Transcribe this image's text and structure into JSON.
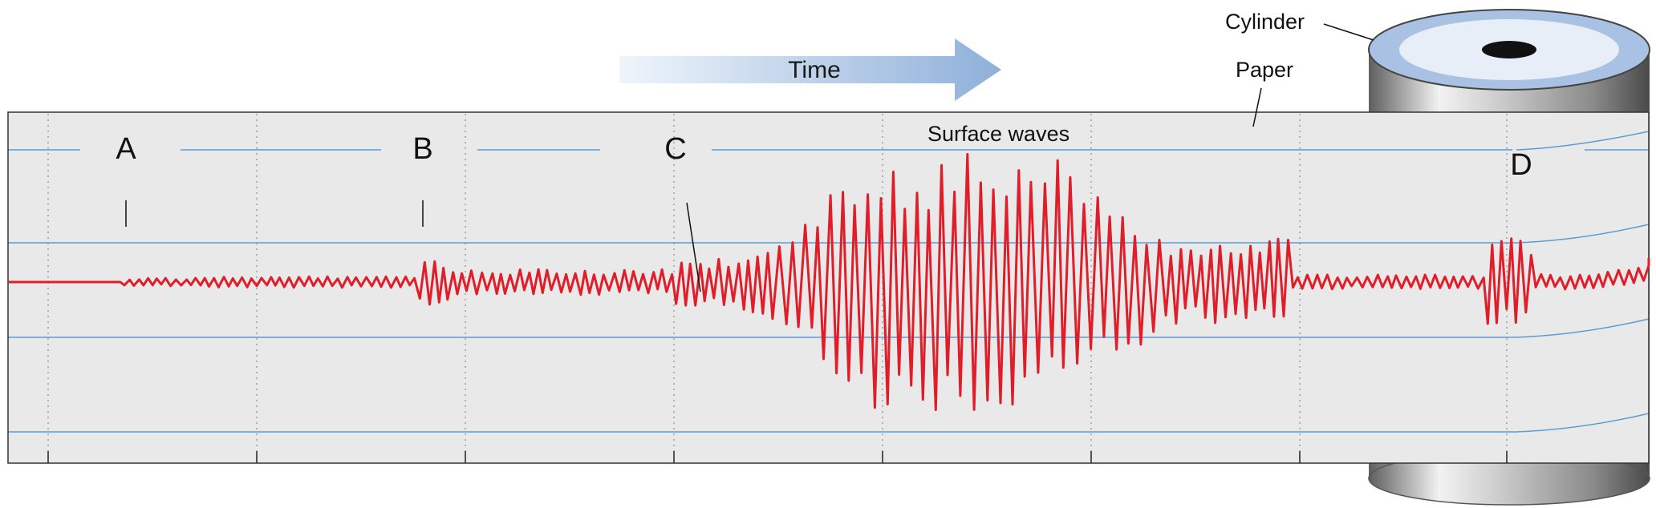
{
  "labels": {
    "time": "Time",
    "cylinder": "Cylinder",
    "paper": "Paper",
    "surface_waves": "Surface waves",
    "a": "A",
    "b": "B",
    "c": "C",
    "d": "D"
  },
  "colors": {
    "trace": "#e01e2a",
    "ruling": "#5b9bd5",
    "paper": "#e9e9e9",
    "arrow_start": "#eef5fb",
    "arrow_end": "#8fb0d9",
    "cylinder_top": "#a9c1e3"
  }
}
